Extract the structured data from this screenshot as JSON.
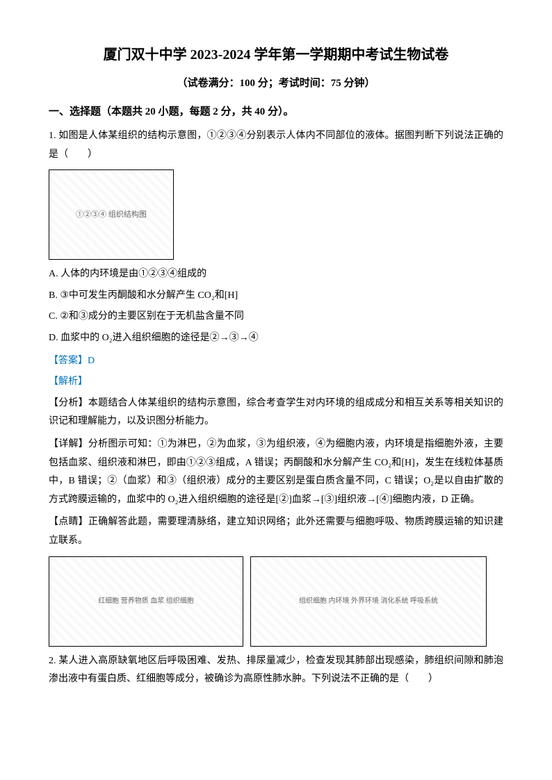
{
  "title": "厦门双十中学 2023-2024 学年第一学期期中考试生物试卷",
  "subtitle": "（试卷满分：100 分；考试时间：75 分钟）",
  "section1": {
    "header": "一、选择题（本题共 20 小题，每题 2 分，共 40 分）。",
    "question1": {
      "text": "1. 如图是人体某组织的结构示意图，①②③④分别表示人体内不同部位的液体。据图判断下列说法正确的是（　　）",
      "figure_label": "①②③④ 组织结构图",
      "optionA": "A. 人体的内环境是由①②③④组成的",
      "optionB": "B. ③中可发生丙酮酸和水分解产生 CO₂和[H]",
      "optionC": "C. ②和③成分的主要区别在于无机盐含量不同",
      "optionD": "D. 血浆中的 O₂进入组织细胞的途径是②→③→④",
      "answer": "【答案】D",
      "analysis_label": "【解析】",
      "analysis1": "【分析】本题结合人体某组织的结构示意图，综合考查学生对内环境的组成成分和相互关系等相关知识的识记和理解能力，以及识图分析能力。",
      "analysis2": "【详解】分析图示可知：①为淋巴，②为血浆，③为组织液，④为细胞内液，内环境是指细胞外液，主要包括血浆、组织液和淋巴，即由①②③组成，A 错误；丙酮酸和水分解产生 CO₂和[H]，发生在线粒体基质中，B 错误；②（血浆）和③（组织液）成分的主要区别是蛋白质含量不同，C 错误；O₂是以自由扩散的方式跨膜运输的，血浆中的 O₂进入组织细胞的途径是[②]血浆→[③]组织液→[④]细胞内液，D 正确。",
      "analysis3": "【点睛】正确解答此题，需要理清脉络，建立知识网络；此外还需要与细胞呼吸、物质跨膜运输的知识建立联系。",
      "figure_bottom_left_label": "红细胞 营养物质 血浆 组织细胞",
      "figure_bottom_right_label": "组织细胞 内环境 外界环境 消化系统 呼吸系统"
    },
    "question2": {
      "text": "2. 某人进入高原缺氧地区后呼吸困难、发热、排尿量减少，检查发现其肺部出现感染，肺组织间隙和肺泡渗出液中有蛋白质、红细胞等成分，被确诊为高原性肺水肿。下列说法不正确的是（　　）"
    }
  },
  "colors": {
    "answer_color": "#0070c0",
    "text_color": "#000000",
    "background_color": "#ffffff"
  }
}
